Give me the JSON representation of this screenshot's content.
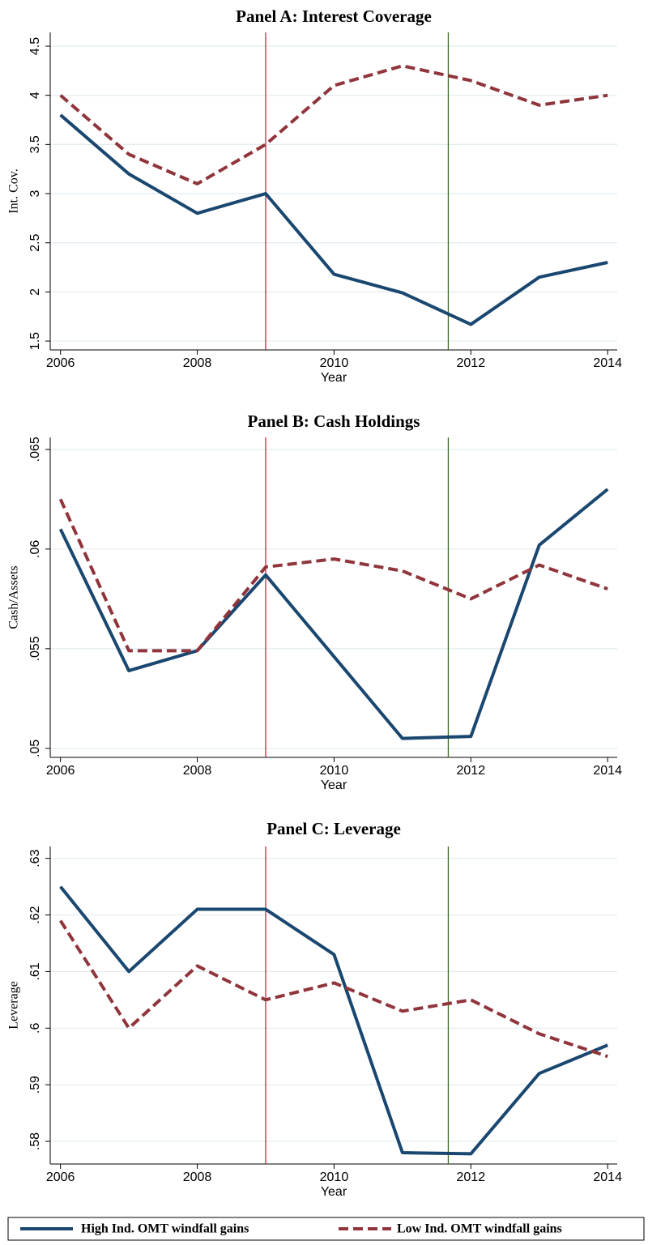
{
  "chart_data": [
    {
      "type": "line",
      "title": "Panel A: Interest Coverage",
      "x_label": "Year",
      "y_label": "Int. Cov.",
      "x": [
        2006,
        2007,
        2008,
        2009,
        2010,
        2011,
        2012,
        2013,
        2014
      ],
      "series": [
        {
          "name": "High Ind. OMT windfall gains",
          "color": "#1a476f",
          "values": [
            3.8,
            3.2,
            2.8,
            3.0,
            2.18,
            1.99,
            1.67,
            2.15,
            2.3
          ]
        },
        {
          "name": "Low Ind. OMT windfall gains",
          "color": "#90353b",
          "dash": true,
          "values": [
            4.0,
            3.4,
            3.1,
            3.5,
            4.1,
            4.3,
            4.15,
            3.9,
            4.0
          ]
        }
      ],
      "xlim": [
        2005.85,
        2014.14
      ],
      "xticks": [
        2006,
        2008,
        2010,
        2012,
        2014
      ],
      "ylim": [
        1.41,
        4.64
      ],
      "yticks": [
        1.5,
        2,
        2.5,
        3,
        3.5,
        4,
        4.5
      ],
      "vlines": [
        {
          "x": 2009,
          "color": "#d0213d"
        },
        {
          "x": 2011.67,
          "color": "#3d6b1f"
        }
      ],
      "grid": true
    },
    {
      "type": "line",
      "title": "Panel B: Cash Holdings",
      "x_label": "Year",
      "y_label": "Cash/Assets",
      "x": [
        2006,
        2007,
        2008,
        2009,
        2010,
        2011,
        2012,
        2013,
        2014
      ],
      "series": [
        {
          "color": "#1a476f",
          "values": [
            0.061,
            0.0539,
            0.0549,
            0.0587,
            0.0546,
            0.0505,
            0.0506,
            0.0602,
            0.063
          ]
        },
        {
          "color": "#90353b",
          "dash": true,
          "values": [
            0.0625,
            0.0549,
            0.0549,
            0.0591,
            0.0595,
            0.0589,
            0.0575,
            0.0592,
            0.058
          ]
        }
      ],
      "xlim": [
        2005.85,
        2014.14
      ],
      "xticks": [
        2006,
        2008,
        2010,
        2012,
        2014
      ],
      "ylim": [
        0.04955,
        0.0656
      ],
      "yticks": [
        {
          "value": 0.05,
          "label": ".05"
        },
        {
          "value": 0.055,
          "label": ".055"
        },
        {
          "value": 0.06,
          "label": ".06"
        },
        {
          "value": 0.065,
          "label": ".065"
        }
      ],
      "vlines": [
        {
          "x": 2009,
          "color": "#d0213d"
        },
        {
          "x": 2011.67,
          "color": "#3d6b1f"
        }
      ],
      "grid": true
    },
    {
      "type": "line",
      "title": "Panel C: Leverage",
      "x_label": "Year",
      "y_label": "Leverage",
      "x": [
        2006,
        2007,
        2008,
        2009,
        2010,
        2011,
        2012,
        2013,
        2014
      ],
      "series": [
        {
          "color": "#1a476f",
          "values": [
            0.625,
            0.61,
            0.621,
            0.621,
            0.613,
            0.578,
            0.5778,
            0.592,
            0.597
          ]
        },
        {
          "color": "#90353b",
          "dash": true,
          "values": [
            0.619,
            0.6,
            0.611,
            0.605,
            0.608,
            0.603,
            0.605,
            0.599,
            0.595
          ]
        }
      ],
      "xlim": [
        2005.85,
        2014.14
      ],
      "xticks": [
        2006,
        2008,
        2010,
        2012,
        2014
      ],
      "ylim": [
        0.576,
        0.6321
      ],
      "yticks": [
        {
          "value": 0.58,
          "label": ".58"
        },
        {
          "value": 0.59,
          "label": ".59"
        },
        {
          "value": 0.6,
          "label": ".6"
        },
        {
          "value": 0.61,
          "label": ".61"
        },
        {
          "value": 0.62,
          "label": ".62"
        },
        {
          "value": 0.63,
          "label": ".63"
        }
      ],
      "vlines": [
        {
          "x": 2009,
          "color": "#d0213d"
        },
        {
          "x": 2011.67,
          "color": "#3d6b1f"
        }
      ],
      "grid": true
    }
  ]
}
